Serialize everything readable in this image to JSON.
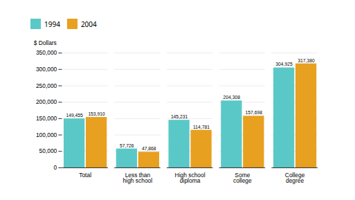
{
  "chart_data": {
    "type": "bar",
    "ylabel": "$ Dollars",
    "categories": [
      "Total",
      "Less than\nhigh school",
      "High school\ndiploma",
      "Some\ncollege",
      "College\ndegree"
    ],
    "series": [
      {
        "name": "1994",
        "color": "#5bc8c8",
        "values": [
          149455,
          57726,
          145231,
          204308,
          304925
        ],
        "value_labels": [
          "149,455",
          "57,726",
          "145,231",
          "204,308",
          "304,925"
        ]
      },
      {
        "name": "2004",
        "color": "#e8a020",
        "values": [
          153910,
          47868,
          114781,
          157698,
          317380
        ],
        "value_labels": [
          "153,910",
          "47,868",
          "114,781",
          "157,698",
          "317,380"
        ]
      }
    ],
    "ylim": [
      0,
      350000
    ],
    "yticks": [
      0,
      {
        "value": 50000,
        "label": "50,000"
      },
      {
        "value": 100000,
        "label": "100,000"
      },
      {
        "value": 150000,
        "label": "150,000"
      },
      {
        "value": 200000,
        "label": "200,000"
      },
      {
        "value": 250000,
        "label": "250,000"
      },
      {
        "value": 300000,
        "label": "300,000"
      },
      {
        "value": 350000,
        "label": "350,000"
      }
    ],
    "grid": true,
    "legend": "top",
    "data_labels": true
  }
}
